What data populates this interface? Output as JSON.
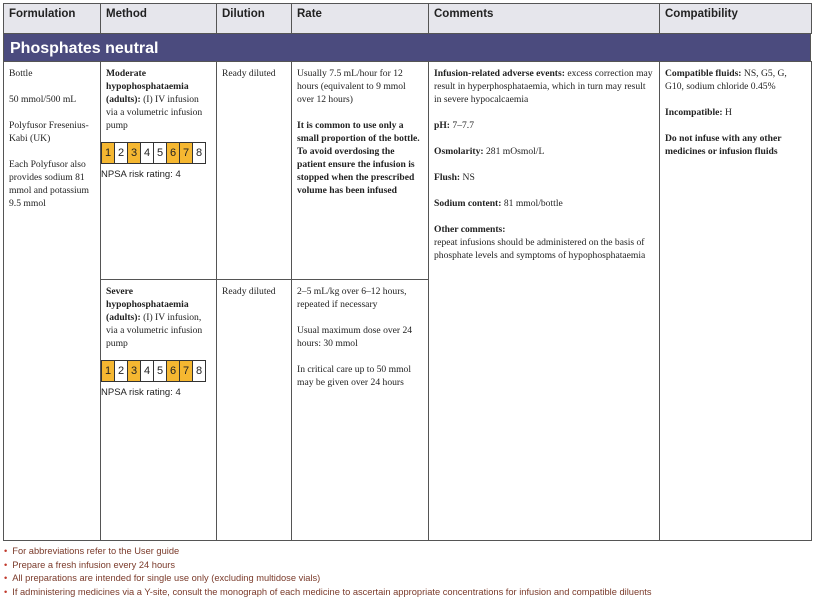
{
  "table": {
    "headers": [
      "Formulation",
      "Method",
      "Dilution",
      "Rate",
      "Comments",
      "Compatibility"
    ],
    "section": "Phosphates neutral",
    "formulation": [
      "Bottle",
      "50 mmol/500 mL",
      "Polyfusor Fresenius-Kabi (UK)",
      "Each Polyfusor also provides sodium 81 mmol and potassium 9.5 mmol"
    ],
    "regimens": [
      {
        "method_bold": "Moderate hypophosphataemia (adults):",
        "method": "(I) IV infusion via a volumetric infusion pump",
        "risk_boxes": [
          {
            "label": "1",
            "highlighted": true
          },
          {
            "label": "2",
            "highlighted": false
          },
          {
            "label": "3",
            "highlighted": true
          },
          {
            "label": "4",
            "highlighted": false
          },
          {
            "label": "5",
            "highlighted": false
          },
          {
            "label": "6",
            "highlighted": true
          },
          {
            "label": "7",
            "highlighted": true
          },
          {
            "label": "8",
            "highlighted": false
          }
        ],
        "risk_rating": "NPSA risk rating: 4",
        "dilution": "Ready diluted",
        "rate": [
          {
            "text": "Usually 7.5 mL/hour for 12 hours (equivalent to 9 mmol over 12 hours)",
            "bold": false
          },
          {
            "text": "It is common to use only a small proportion of the bottle. To avoid overdosing the patient ensure the infusion is stopped when the prescribed volume has been infused",
            "bold": true
          }
        ]
      },
      {
        "method_bold": "Severe hypophosphataemia (adults):",
        "method": "(I) IV infusion, via a volumetric infusion pump",
        "risk_boxes": [
          {
            "label": "1",
            "highlighted": true
          },
          {
            "label": "2",
            "highlighted": false
          },
          {
            "label": "3",
            "highlighted": true
          },
          {
            "label": "4",
            "highlighted": false
          },
          {
            "label": "5",
            "highlighted": false
          },
          {
            "label": "6",
            "highlighted": true
          },
          {
            "label": "7",
            "highlighted": true
          },
          {
            "label": "8",
            "highlighted": false
          }
        ],
        "risk_rating": "NPSA risk rating: 4",
        "dilution": "Ready diluted",
        "rate": [
          {
            "text": "2–5 mL/kg over 6–12 hours, repeated if necessary",
            "bold": false
          },
          {
            "text": "Usual maximum dose over 24 hours: 30 mmol",
            "bold": false
          },
          {
            "text": "In critical care up to 50 mmol may be given over 24 hours",
            "bold": false
          }
        ]
      }
    ],
    "comments": [
      {
        "label": "Infusion-related adverse events:",
        "text": "excess correction may result in hyperphosphataemia, which in turn may result in severe hypocalcaemia",
        "newline": false
      },
      {
        "label": "pH:",
        "text": "7–7.7",
        "newline": false
      },
      {
        "label": "Osmolarity:",
        "text": "281 mOsmol/L",
        "newline": false
      },
      {
        "label": "Flush:",
        "text": "NS",
        "newline": false
      },
      {
        "label": "Sodium content:",
        "text": "81 mmol/bottle",
        "newline": false
      },
      {
        "label": "Other comments:",
        "text": "repeat infusions should be administered on the basis of phosphate levels and symptoms of hypophosphataemia",
        "newline": true
      }
    ],
    "compatibility": [
      {
        "label": "Compatible fluids:",
        "text": "NS, G5, G, G10, sodium chloride 0.45%"
      },
      {
        "label": "Incompatible:",
        "text": "H"
      },
      {
        "label": "Do not infuse with any other medicines or infusion fluids",
        "text": ""
      }
    ]
  },
  "footnotes": [
    "For abbreviations refer to the User guide",
    "Prepare a fresh infusion every 24 hours",
    "All preparations are intended for single use only (excluding multidose vials)",
    "If administering medicines via a Y-site, consult the monograph of each medicine to ascertain appropriate concentrations for infusion and compatible diluents"
  ]
}
